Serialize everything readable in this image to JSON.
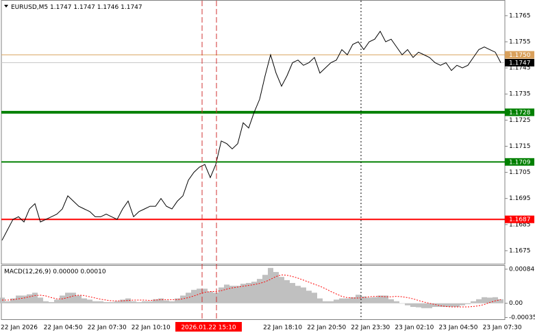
{
  "chart_data": [
    {
      "type": "line",
      "title": "EURUSD,M5",
      "ohlc": [
        1.1747,
        1.1747,
        1.1746,
        1.1747
      ],
      "color": "#000000",
      "values": [
        1.1679,
        1.1683,
        1.1687,
        1.1688,
        1.1686,
        1.1691,
        1.1693,
        1.1686,
        1.1687,
        1.1688,
        1.1689,
        1.1691,
        1.1696,
        1.1694,
        1.1692,
        1.1691,
        1.169,
        1.1688,
        1.1688,
        1.1689,
        1.1688,
        1.1687,
        1.1691,
        1.1694,
        1.1688,
        1.169,
        1.1691,
        1.1692,
        1.1692,
        1.1695,
        1.1692,
        1.1691,
        1.1694,
        1.1696,
        1.1702,
        1.1705,
        1.1707,
        1.1708,
        1.1703,
        1.1708,
        1.1717,
        1.1716,
        1.1714,
        1.1716,
        1.1724,
        1.1722,
        1.1728,
        1.1733,
        1.1742,
        1.175,
        1.1743,
        1.1738,
        1.1742,
        1.1747,
        1.1748,
        1.1746,
        1.1747,
        1.1749,
        1.1743,
        1.1745,
        1.1747,
        1.1748,
        1.1752,
        1.175,
        1.1754,
        1.1755,
        1.1752,
        1.1755,
        1.1756,
        1.1759,
        1.1755,
        1.1756,
        1.1753,
        1.175,
        1.1752,
        1.1749,
        1.1751,
        1.175,
        1.1749,
        1.1747,
        1.1746,
        1.1747,
        1.1744,
        1.1746,
        1.1745,
        1.1746,
        1.1749,
        1.1752,
        1.1753,
        1.1752,
        1.1751,
        1.1747
      ],
      "ylim": [
        1.167,
        1.1771
      ],
      "yticks": [
        1.1675,
        1.1685,
        1.1695,
        1.1705,
        1.1715,
        1.1725,
        1.1735,
        1.1745,
        1.1755,
        1.1765
      ],
      "levels": [
        {
          "value": 1.175,
          "label": "1.1750",
          "color": "#d9a05b",
          "width": 1
        },
        {
          "value": 1.1747,
          "color": "#c8c8c8",
          "box_color": "#000000",
          "width": 1
        },
        {
          "value": 1.1728,
          "color": "#008000",
          "width": 4
        },
        {
          "value": 1.1709,
          "color": "#008000",
          "width": 2
        },
        {
          "value": 1.1687,
          "color": "#ff0000",
          "width": 2
        }
      ],
      "x_labels": [
        "22 Jan 2026",
        "22 Jan 04:50",
        "22 Jan 07:30",
        "22 Jan 10:10",
        null,
        null,
        "22 Jan 18:10",
        "22 Jan 20:50",
        "22 Jan 23:30",
        "23 Jan 02:10",
        "23 Jan 04:50",
        "23 Jan 07:30"
      ],
      "highlight_label": "2026.01.22 15:10"
    },
    {
      "type": "macd",
      "title": "MACD(12,26,9)",
      "title_values": [
        {
          "value": 0,
          "label": "0.00000"
        },
        {
          "value": 0.0001,
          "label": "0.00010"
        }
      ],
      "color": "#c0c0c0",
      "signal_color": "#ff0000",
      "values": [
        0.00014,
        5e-05,
        0.00012,
        0.00019,
        0.00019,
        0.00022,
        0.00026,
        0.00014,
        5e-05,
        3e-05,
        9e-05,
        0.00019,
        0.00026,
        0.00026,
        0.00019,
        0.00012,
        9e-05,
        5e-05,
        5e-05,
        3e-05,
        3e-05,
        5e-05,
        9e-05,
        0.00012,
        5e-05,
        3e-05,
        5e-05,
        5e-05,
        0.0001,
        0.00012,
        7e-05,
        5e-05,
        0.00012,
        0.00019,
        0.00026,
        0.00033,
        0.00036,
        0.00036,
        0.00029,
        0.00026,
        0.00039,
        0.00046,
        0.00043,
        0.00043,
        0.00048,
        0.0005,
        0.00053,
        0.0006,
        0.0007,
        0.00087,
        0.00077,
        0.00065,
        0.00057,
        0.0005,
        0.00043,
        0.00039,
        0.00031,
        0.00026,
        0.00012,
        5e-05,
        5e-05,
        9e-05,
        0.00012,
        0.00012,
        0.00015,
        0.00021,
        0.00017,
        0.00014,
        0.00015,
        0.00019,
        0.00019,
        0.0001,
        5e-05,
        0,
        -5e-05,
        -9e-05,
        -0.0001,
        -0.00012,
        -0.00012,
        -9e-05,
        -9e-05,
        -9e-05,
        -9e-05,
        -9e-05,
        -5e-05,
        -2e-05,
        5e-05,
        0.0001,
        0.00015,
        0.00014,
        0.00015,
        0.0001
      ],
      "signal": [
        8e-05,
        8e-05,
        9e-05,
        0.00011,
        0.00013,
        0.00016,
        0.00019,
        0.0002,
        0.00018,
        0.00014,
        0.00011,
        0.00011,
        0.00014,
        0.00018,
        0.0002,
        0.00019,
        0.00016,
        0.00013,
        0.0001,
        8e-05,
        6e-05,
        6e-05,
        6e-05,
        7e-05,
        8e-05,
        8e-05,
        8e-05,
        7e-05,
        8e-05,
        9e-05,
        9e-05,
        9e-05,
        9e-05,
        0.00011,
        0.00014,
        0.00018,
        0.00023,
        0.00027,
        0.00029,
        0.00029,
        0.00031,
        0.00035,
        0.00038,
        0.0004,
        0.00042,
        0.00044,
        0.00046,
        0.00049,
        0.00053,
        0.00059,
        0.00066,
        0.0007,
        0.00069,
        0.00066,
        0.00062,
        0.00057,
        0.00052,
        0.00047,
        0.00042,
        0.00036,
        0.00029,
        0.00023,
        0.00017,
        0.00014,
        0.00013,
        0.00013,
        0.00014,
        0.00016,
        0.00017,
        0.00017,
        0.00016,
        0.00016,
        0.00017,
        0.00016,
        0.00014,
        0.00011,
        7e-05,
        3e-05,
        0,
        -3e-05,
        -6e-05,
        -8e-05,
        -9e-05,
        -9e-05,
        -9e-05,
        -9e-05,
        -8e-05,
        -6e-05,
        -3e-05,
        2e-05,
        6e-05,
        9e-05
      ],
      "ylim": [
        -0.00041,
        0.00094
      ],
      "yticks": [
        0.00084,
        {
          "value": 0,
          "label": "0.00"
        },
        -0.00035
      ]
    }
  ]
}
